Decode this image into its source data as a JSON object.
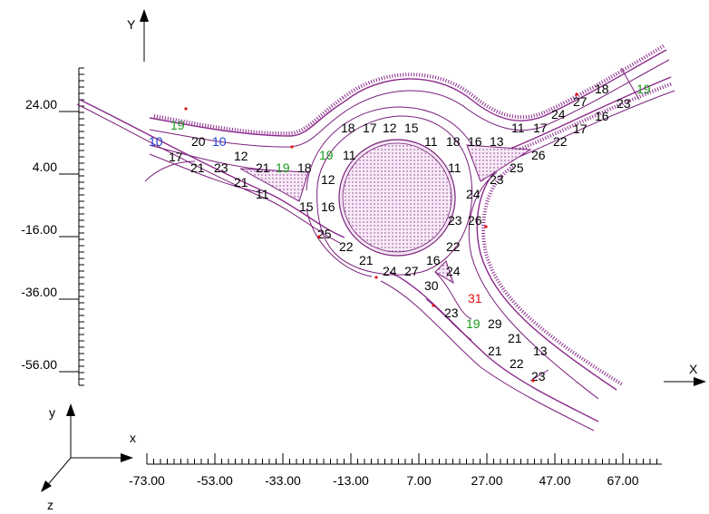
{
  "axes": {
    "big_y_label": "Y",
    "big_x_label": "X",
    "triad": {
      "x": "x",
      "y": "y",
      "z": "z"
    }
  },
  "y_ticks": [
    "24.00",
    "4.00",
    "-16.00",
    "-36.00",
    "-56.00"
  ],
  "x_ticks": [
    "-73.00",
    "-53.00",
    "-33.00",
    "-13.00",
    "7.00",
    "27.00",
    "47.00",
    "67.00"
  ],
  "colors": {
    "road": "#7a1f7a",
    "label_black": "#000000",
    "label_green": "#1a9a1a",
    "label_blue": "#1f3fd6",
    "label_red": "#e01010"
  },
  "labels": [
    {
      "t": "19",
      "c": "green"
    },
    {
      "t": "10",
      "c": "blue"
    },
    {
      "t": "20",
      "c": "black"
    },
    {
      "t": "10",
      "c": "blue"
    },
    {
      "t": "17",
      "c": "black"
    },
    {
      "t": "21",
      "c": "black"
    },
    {
      "t": "23",
      "c": "black"
    },
    {
      "t": "12",
      "c": "black"
    },
    {
      "t": "21",
      "c": "black"
    },
    {
      "t": "19",
      "c": "green"
    },
    {
      "t": "18",
      "c": "black"
    },
    {
      "t": "21",
      "c": "black"
    },
    {
      "t": "11",
      "c": "black"
    },
    {
      "t": "12",
      "c": "black"
    },
    {
      "t": "15",
      "c": "black"
    },
    {
      "t": "16",
      "c": "black"
    },
    {
      "t": "19",
      "c": "green"
    },
    {
      "t": "11",
      "c": "black"
    },
    {
      "t": "18",
      "c": "black"
    },
    {
      "t": "17",
      "c": "black"
    },
    {
      "t": "12",
      "c": "black"
    },
    {
      "t": "15",
      "c": "black"
    },
    {
      "t": "11",
      "c": "black"
    },
    {
      "t": "18",
      "c": "black"
    },
    {
      "t": "16",
      "c": "black"
    },
    {
      "t": "13",
      "c": "black"
    },
    {
      "t": "11",
      "c": "black"
    },
    {
      "t": "17",
      "c": "black"
    },
    {
      "t": "24",
      "c": "black"
    },
    {
      "t": "27",
      "c": "black"
    },
    {
      "t": "18",
      "c": "black"
    },
    {
      "t": "19",
      "c": "green"
    },
    {
      "t": "23",
      "c": "black"
    },
    {
      "t": "16",
      "c": "black"
    },
    {
      "t": "17",
      "c": "black"
    },
    {
      "t": "22",
      "c": "black"
    },
    {
      "t": "26",
      "c": "black"
    },
    {
      "t": "25",
      "c": "black"
    },
    {
      "t": "23",
      "c": "black"
    },
    {
      "t": "24",
      "c": "black"
    },
    {
      "t": "11",
      "c": "black"
    },
    {
      "t": "23",
      "c": "black"
    },
    {
      "t": "26",
      "c": "black"
    },
    {
      "t": "25",
      "c": "black"
    },
    {
      "t": "22",
      "c": "black"
    },
    {
      "t": "21",
      "c": "black"
    },
    {
      "t": "24",
      "c": "black"
    },
    {
      "t": "27",
      "c": "black"
    },
    {
      "t": "22",
      "c": "black"
    },
    {
      "t": "16",
      "c": "black"
    },
    {
      "t": "24",
      "c": "black"
    },
    {
      "t": "30",
      "c": "black"
    },
    {
      "t": "31",
      "c": "red"
    },
    {
      "t": "23",
      "c": "black"
    },
    {
      "t": "19",
      "c": "green"
    },
    {
      "t": "29",
      "c": "black"
    },
    {
      "t": "21",
      "c": "black"
    },
    {
      "t": "13",
      "c": "black"
    },
    {
      "t": "21",
      "c": "black"
    },
    {
      "t": "22",
      "c": "black"
    },
    {
      "t": "23",
      "c": "black"
    }
  ]
}
